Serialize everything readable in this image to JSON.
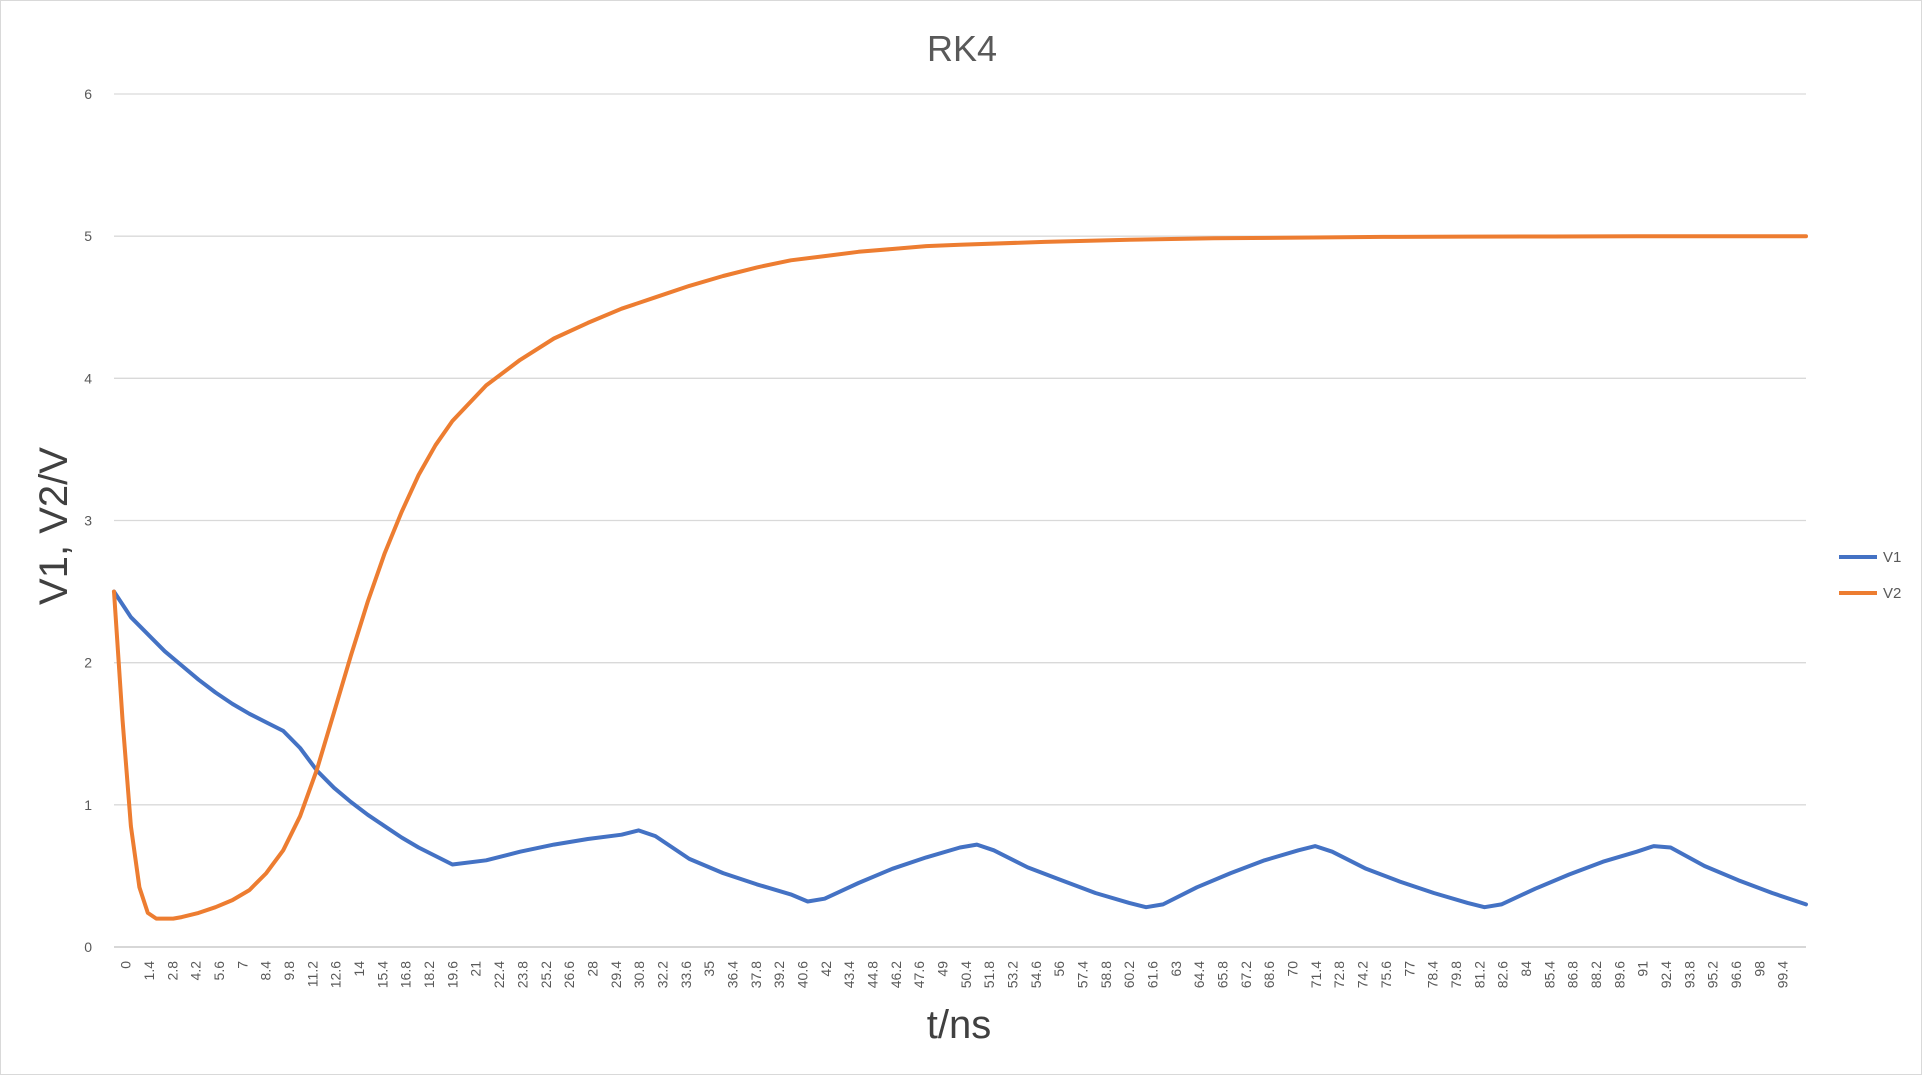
{
  "chart_data": {
    "type": "line",
    "title": "RK4",
    "xlabel": "t/ns",
    "ylabel": "V1, V2/V",
    "ylim": [
      0,
      6
    ],
    "yticks": [
      0,
      1,
      2,
      3,
      4,
      5,
      6
    ],
    "xlim": [
      0,
      100
    ],
    "x_tick_labels": [
      "0",
      "1.4",
      "2.8",
      "4.2",
      "5.6",
      "7",
      "8.4",
      "9.8",
      "11.2",
      "12.6",
      "14",
      "15.4",
      "16.8",
      "18.2",
      "19.6",
      "21",
      "22.4",
      "23.8",
      "25.2",
      "26.6",
      "28",
      "29.4",
      "30.8",
      "32.2",
      "33.6",
      "35",
      "36.4",
      "37.8",
      "39.2",
      "40.6",
      "42",
      "43.4",
      "44.8",
      "46.2",
      "47.6",
      "49",
      "50.4",
      "51.8",
      "53.2",
      "54.6",
      "56",
      "57.4",
      "58.8",
      "60.2",
      "61.6",
      "63",
      "64.4",
      "65.8",
      "67.2",
      "68.6",
      "70",
      "71.4",
      "72.8",
      "74.2",
      "75.6",
      "77",
      "78.4",
      "79.8",
      "81.2",
      "82.6",
      "84",
      "85.4",
      "86.8",
      "88.2",
      "89.6",
      "91",
      "92.4",
      "93.8",
      "95.2",
      "96.6",
      "98",
      "99.4"
    ],
    "grid": true,
    "legend_position": "right",
    "series": [
      {
        "name": "V1",
        "color": "#4472C4",
        "x": [
          0,
          1,
          2,
          3,
          4,
          5,
          6,
          7,
          8,
          9,
          10,
          11,
          12,
          13,
          14,
          15,
          16,
          17,
          18,
          19,
          20,
          22,
          24,
          26,
          28,
          30,
          31,
          32,
          34,
          36,
          38,
          40,
          41,
          42,
          44,
          46,
          48,
          50,
          51,
          52,
          54,
          56,
          58,
          60,
          61,
          62,
          64,
          66,
          68,
          70,
          71,
          72,
          74,
          76,
          78,
          80,
          81,
          82,
          84,
          86,
          88,
          90,
          91,
          92,
          94,
          96,
          98,
          100
        ],
        "y": [
          2.5,
          2.32,
          2.2,
          2.08,
          1.98,
          1.88,
          1.79,
          1.71,
          1.64,
          1.58,
          1.52,
          1.4,
          1.24,
          1.12,
          1.02,
          0.93,
          0.85,
          0.77,
          0.7,
          0.64,
          0.58,
          0.61,
          0.67,
          0.72,
          0.76,
          0.79,
          0.82,
          0.78,
          0.62,
          0.52,
          0.44,
          0.37,
          0.32,
          0.34,
          0.45,
          0.55,
          0.63,
          0.7,
          0.72,
          0.68,
          0.56,
          0.47,
          0.38,
          0.31,
          0.28,
          0.3,
          0.42,
          0.52,
          0.61,
          0.68,
          0.71,
          0.67,
          0.55,
          0.46,
          0.38,
          0.31,
          0.28,
          0.3,
          0.41,
          0.51,
          0.6,
          0.67,
          0.71,
          0.7,
          0.57,
          0.47,
          0.38,
          0.3
        ]
      },
      {
        "name": "V2",
        "color": "#ED7D31",
        "x": [
          0,
          0.5,
          1,
          1.5,
          2,
          2.5,
          3,
          3.5,
          4,
          5,
          6,
          7,
          8,
          9,
          10,
          11,
          12,
          13,
          14,
          15,
          16,
          17,
          18,
          19,
          20,
          22,
          24,
          26,
          28,
          30,
          32,
          34,
          36,
          38,
          40,
          42,
          44,
          46,
          48,
          50,
          55,
          60,
          65,
          70,
          75,
          80,
          85,
          90,
          95,
          100
        ],
        "y": [
          2.5,
          1.6,
          0.85,
          0.42,
          0.24,
          0.2,
          0.2,
          0.2,
          0.21,
          0.24,
          0.28,
          0.33,
          0.4,
          0.52,
          0.68,
          0.92,
          1.25,
          1.65,
          2.05,
          2.43,
          2.77,
          3.06,
          3.32,
          3.53,
          3.7,
          3.95,
          4.13,
          4.28,
          4.39,
          4.49,
          4.57,
          4.65,
          4.72,
          4.78,
          4.83,
          4.86,
          4.89,
          4.91,
          4.93,
          4.94,
          4.96,
          4.975,
          4.985,
          4.99,
          4.995,
          4.997,
          4.998,
          4.999,
          5.0,
          5.0
        ]
      }
    ]
  }
}
